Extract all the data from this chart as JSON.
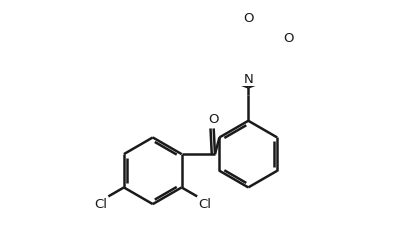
{
  "background_color": "#ffffff",
  "line_color": "#1a1a1a",
  "line_width": 1.8,
  "figsize": [
    3.94,
    2.4
  ],
  "dpi": 100,
  "xlim": [
    0,
    394
  ],
  "ylim": [
    0,
    240
  ],
  "label_fontsize": 9.5,
  "cl_fontsize": 9.5,
  "o_fontsize": 9.5,
  "n_fontsize": 9.5
}
